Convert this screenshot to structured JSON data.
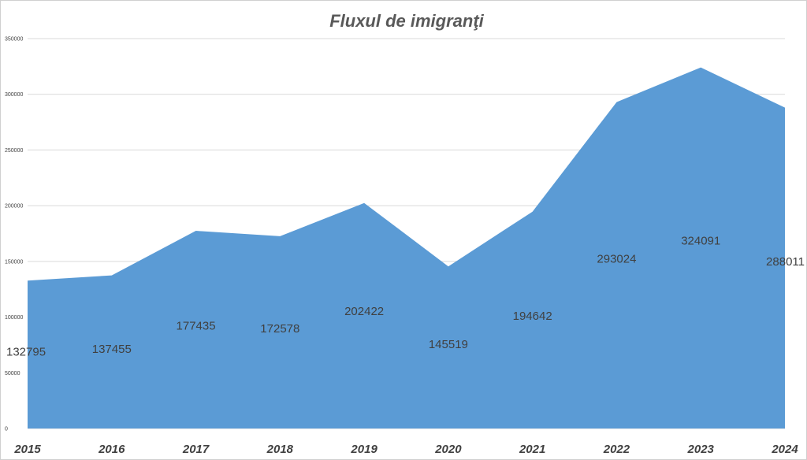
{
  "chart_data": {
    "type": "area",
    "title": "Fluxul de imigranţi",
    "xlabel": "",
    "ylabel": "",
    "categories": [
      "2015",
      "2016",
      "2017",
      "2018",
      "2019",
      "2020",
      "2021",
      "2022",
      "2023",
      "2024"
    ],
    "values": [
      132795,
      137455,
      177435,
      172578,
      202422,
      145519,
      194642,
      293024,
      324091,
      288011
    ],
    "data_labels": [
      "132795",
      "137455",
      "177435",
      "172578",
      "202422",
      "145519",
      "194642",
      "293024",
      "324091",
      "288011"
    ],
    "yticks": [
      "0",
      "50000",
      "100000",
      "150000",
      "200000",
      "250000",
      "300000",
      "350000"
    ],
    "ylim": [
      0,
      350000
    ],
    "grid": true,
    "legend": "none",
    "colors": {
      "area": "#5b9bd5",
      "grid": "#d9d9d9",
      "text": "#404040",
      "title": "#595959"
    }
  }
}
